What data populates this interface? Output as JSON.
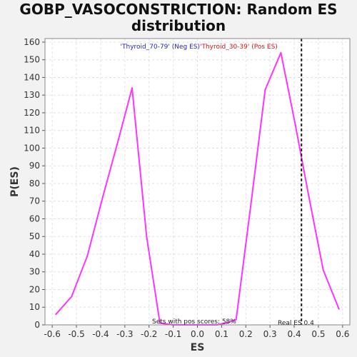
{
  "chart_data": {
    "type": "line",
    "title_line1": "GOBP_VASOCONSTRICTION: Random ES",
    "title_line2": "distribution",
    "xlabel": "ES",
    "ylabel": "P(ES)",
    "xlim": [
      -0.63,
      0.63
    ],
    "ylim": [
      0,
      162
    ],
    "xticks": [
      -0.6,
      -0.5,
      -0.4,
      -0.3,
      -0.2,
      -0.1,
      0.0,
      0.1,
      0.2,
      0.3,
      0.4,
      0.5,
      0.6
    ],
    "xtick_labels": [
      "-0.6",
      "-0.5",
      "-0.4",
      "-0.3",
      "-0.2",
      "-0.1",
      "0.0",
      "0.1",
      "0.2",
      "0.3",
      "0.4",
      "0.5",
      "0.6"
    ],
    "yticks": [
      0,
      10,
      20,
      30,
      40,
      50,
      60,
      70,
      80,
      90,
      100,
      110,
      120,
      130,
      140,
      150,
      160
    ],
    "ytick_labels": [
      "0",
      "10",
      "20",
      "30",
      "40",
      "50",
      "60",
      "70",
      "80",
      "90",
      "100",
      "110",
      "120",
      "130",
      "140",
      "150",
      "160"
    ],
    "grid": true,
    "series": [
      {
        "color": "#ff33ff",
        "x": [
          -0.585,
          -0.52,
          -0.455,
          -0.39,
          -0.33,
          -0.27,
          -0.21,
          -0.155,
          -0.1,
          -0.04,
          0.02,
          0.08,
          0.12,
          0.16,
          0.22,
          0.28,
          0.345,
          0.405,
          0.46,
          0.52,
          0.585
        ],
        "y": [
          6,
          16,
          39,
          73,
          103,
          134,
          50,
          1,
          0,
          0,
          0,
          0,
          1,
          3,
          67,
          133,
          154,
          113,
          73,
          31,
          9
        ]
      }
    ],
    "legend": [
      {
        "label": "'Thyroid_70-79' (Neg ES)",
        "color": "#1f1fcc"
      },
      {
        "label": "'Thyroid_30-39' (Pos ES)",
        "color": "#dd1111"
      }
    ],
    "real_es": {
      "x": 0.43,
      "label": "Real ES 0.4"
    },
    "annotation": "Sets with pos scores: 58%",
    "colors": {
      "line": "#ff33ff",
      "grid": "#e0e0e0",
      "plot_bg": "#ffffff",
      "marker_line": "#222222"
    }
  }
}
